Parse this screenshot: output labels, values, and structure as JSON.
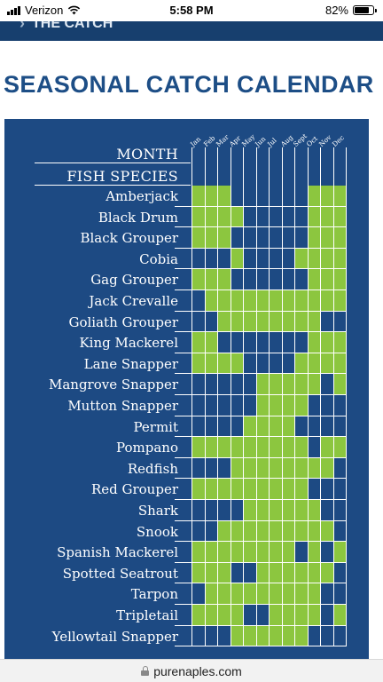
{
  "status_bar": {
    "carrier": "Verizon",
    "time": "5:58 PM",
    "battery": "82%",
    "battery_level": 0.82
  },
  "banner": {
    "title": "THE CATCH"
  },
  "page_title": "SEASONAL CATCH CALENDAR",
  "calendar": {
    "month_header": "MONTH",
    "species_header": "FISH SPECIES",
    "months": [
      "Jan",
      "Feb",
      "Mar",
      "Apr",
      "May",
      "Jun",
      "Jul",
      "Aug",
      "Sept",
      "Oct",
      "Nov",
      "Dec"
    ],
    "colors": {
      "background": "#1d4a83",
      "in_season": "#8cc63f",
      "lines": "#ffffff"
    },
    "rows": [
      {
        "name": "Amberjack",
        "season": [
          1,
          1,
          1,
          0,
          0,
          0,
          0,
          0,
          0,
          1,
          1,
          1
        ]
      },
      {
        "name": "Black Drum",
        "season": [
          1,
          1,
          1,
          1,
          0,
          0,
          0,
          0,
          0,
          1,
          1,
          1
        ]
      },
      {
        "name": "Black Grouper",
        "season": [
          1,
          1,
          1,
          0,
          0,
          0,
          0,
          0,
          0,
          1,
          1,
          1
        ]
      },
      {
        "name": "Cobia",
        "season": [
          0,
          0,
          0,
          1,
          0,
          0,
          0,
          0,
          1,
          1,
          1,
          1
        ]
      },
      {
        "name": "Gag Grouper",
        "season": [
          1,
          1,
          1,
          0,
          0,
          0,
          0,
          0,
          0,
          1,
          1,
          1
        ]
      },
      {
        "name": "Jack Crevalle",
        "season": [
          0,
          1,
          1,
          1,
          1,
          1,
          1,
          1,
          1,
          1,
          1,
          1
        ]
      },
      {
        "name": "Goliath Grouper",
        "season": [
          0,
          0,
          1,
          1,
          1,
          1,
          1,
          1,
          1,
          1,
          0,
          0
        ]
      },
      {
        "name": "King Mackerel",
        "season": [
          1,
          1,
          0,
          0,
          0,
          0,
          0,
          0,
          0,
          1,
          1,
          1
        ]
      },
      {
        "name": "Lane Snapper",
        "season": [
          1,
          1,
          1,
          1,
          0,
          0,
          0,
          0,
          1,
          1,
          1,
          1
        ]
      },
      {
        "name": "Mangrove Snapper",
        "season": [
          0,
          0,
          0,
          0,
          0,
          1,
          1,
          1,
          1,
          1,
          0,
          1
        ]
      },
      {
        "name": "Mutton Snapper",
        "season": [
          0,
          0,
          0,
          0,
          0,
          1,
          1,
          1,
          1,
          0,
          0,
          0
        ]
      },
      {
        "name": "Permit",
        "season": [
          0,
          0,
          0,
          0,
          1,
          1,
          1,
          1,
          0,
          0,
          0,
          0
        ]
      },
      {
        "name": "Pompano",
        "season": [
          1,
          1,
          1,
          1,
          1,
          1,
          1,
          1,
          1,
          0,
          1,
          1
        ]
      },
      {
        "name": "Redfish",
        "season": [
          0,
          0,
          0,
          1,
          1,
          1,
          1,
          1,
          1,
          1,
          1,
          0
        ]
      },
      {
        "name": "Red Grouper",
        "season": [
          1,
          1,
          1,
          1,
          1,
          1,
          1,
          1,
          1,
          0,
          0,
          0
        ]
      },
      {
        "name": "Shark",
        "season": [
          0,
          0,
          0,
          0,
          1,
          1,
          1,
          1,
          1,
          1,
          0,
          0
        ]
      },
      {
        "name": "Snook",
        "season": [
          0,
          0,
          1,
          1,
          1,
          1,
          1,
          1,
          1,
          1,
          1,
          0
        ]
      },
      {
        "name": "Spanish Mackerel",
        "season": [
          1,
          1,
          1,
          1,
          1,
          1,
          1,
          1,
          0,
          1,
          0,
          1
        ]
      },
      {
        "name": "Spotted Seatrout",
        "season": [
          1,
          1,
          1,
          0,
          0,
          1,
          1,
          1,
          1,
          1,
          1,
          0
        ]
      },
      {
        "name": "Tarpon",
        "season": [
          0,
          1,
          1,
          1,
          1,
          1,
          1,
          1,
          1,
          1,
          0,
          0
        ]
      },
      {
        "name": "Tripletail",
        "season": [
          1,
          1,
          1,
          1,
          0,
          0,
          1,
          1,
          1,
          1,
          0,
          1
        ]
      },
      {
        "name": "Yellowtail Snapper",
        "season": [
          0,
          0,
          0,
          1,
          1,
          1,
          1,
          1,
          1,
          0,
          0,
          0
        ]
      }
    ]
  },
  "url_bar": {
    "domain": "purenaples.com"
  }
}
